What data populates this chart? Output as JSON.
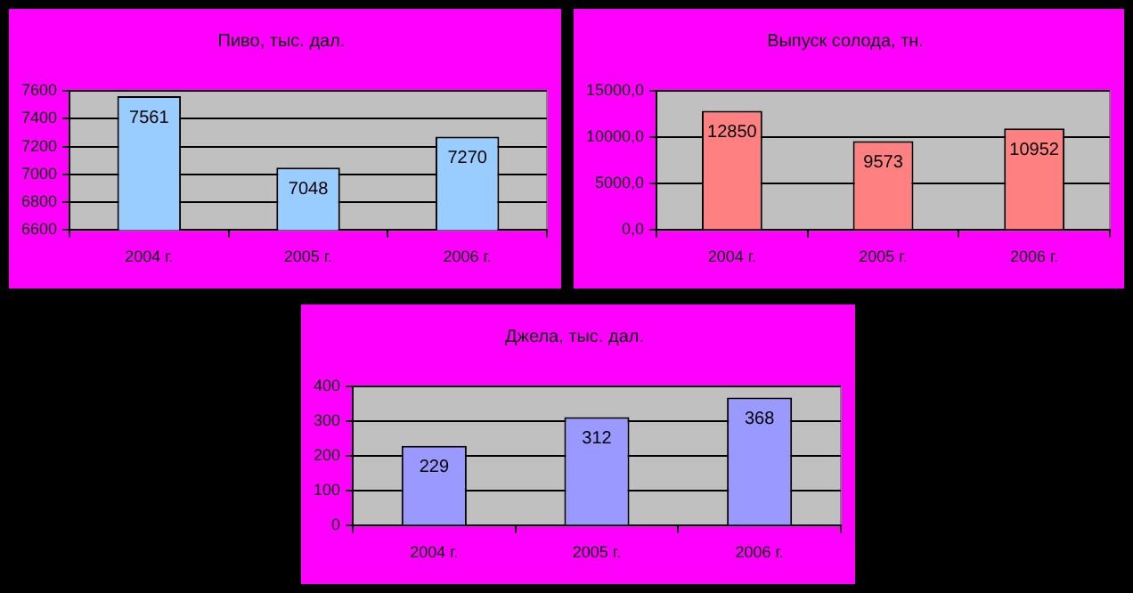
{
  "chart_data": [
    {
      "type": "bar",
      "title": "Пиво, тыс. дал.",
      "categories": [
        "2004 г.",
        "2005 г.",
        "2006 г."
      ],
      "values": [
        7561,
        7048,
        7270
      ],
      "color": "#99ccff",
      "ylim": [
        6600,
        7600
      ],
      "yticks": [
        6600,
        6800,
        7000,
        7200,
        7400,
        7600
      ],
      "grid": "y",
      "data_labels": true
    },
    {
      "type": "bar",
      "title": "Выпуск солода, тн.",
      "categories": [
        "2004 г.",
        "2005 г.",
        "2006 г."
      ],
      "values": [
        12850,
        9573,
        10952
      ],
      "color": "#ff8080",
      "ylim": [
        0,
        15000
      ],
      "yticks": [
        {
          "value": 0,
          "label": "0,0"
        },
        {
          "value": 5000,
          "label": "5000,0"
        },
        {
          "value": 10000,
          "label": "10000,0"
        },
        {
          "value": 15000,
          "label": "15000,0"
        }
      ],
      "grid": "y",
      "data_labels": true
    },
    {
      "type": "bar",
      "title": "Джела, тыс. дал.",
      "categories": [
        "2004 г.",
        "2005 г.",
        "2006 г."
      ],
      "values": [
        229,
        312,
        368
      ],
      "color": "#9999ff",
      "ylim": [
        0,
        400
      ],
      "yticks": [
        0,
        100,
        200,
        300,
        400
      ],
      "grid": "y",
      "data_labels": true
    }
  ]
}
